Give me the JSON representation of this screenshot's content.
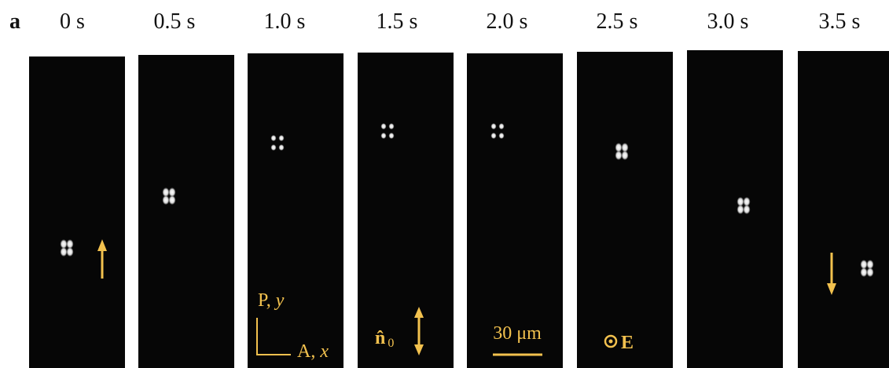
{
  "panel_label": "a",
  "frames": [
    {
      "time": "0 s"
    },
    {
      "time": "0.5 s"
    },
    {
      "time": "1.0 s"
    },
    {
      "time": "1.5 s"
    },
    {
      "time": "2.0 s"
    },
    {
      "time": "2.5 s"
    },
    {
      "time": "3.0 s"
    },
    {
      "time": "3.5 s"
    }
  ],
  "annotations": {
    "polarizer": "P,",
    "polarizer_axis": "y",
    "analyzer": "A,",
    "analyzer_axis": "x",
    "director": "n̂",
    "director_subscript": "0",
    "scale_bar": "30 μm",
    "field": "E"
  }
}
